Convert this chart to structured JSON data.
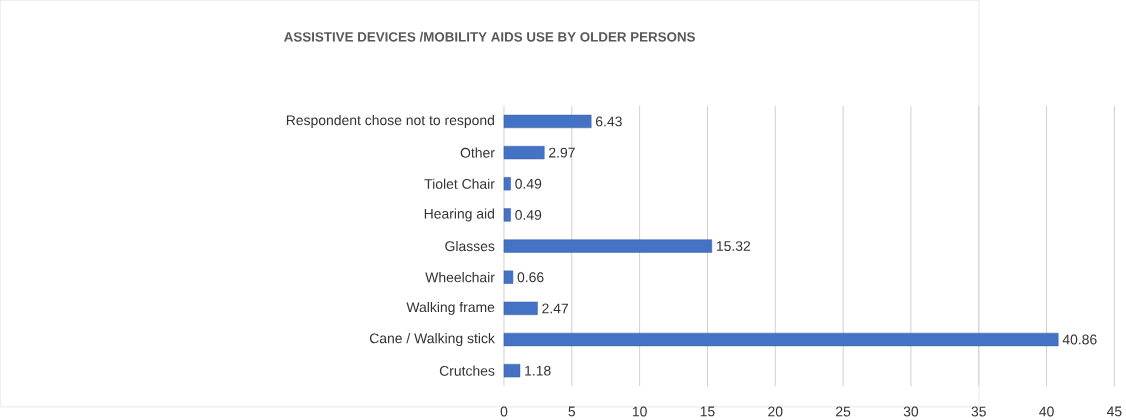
{
  "chart_data": {
    "type": "bar",
    "orientation": "horizontal",
    "title": "ASSISTIVE DEVICES /MOBILITY AIDS USE BY OLDER PERSONS",
    "categories": [
      "Respondent chose not to respond",
      "Other",
      "Tiolet Chair",
      "Hearing aid",
      "Glasses",
      "Wheelchair",
      "Walking frame",
      "Cane / Walking stick",
      "Crutches"
    ],
    "values": [
      6.43,
      2.97,
      0.49,
      0.49,
      15.32,
      0.66,
      2.47,
      40.86,
      1.18
    ],
    "color": "#4472c4",
    "xlim": [
      0,
      45
    ],
    "xticks": [
      0,
      5,
      10,
      15,
      20,
      25,
      30,
      35,
      40,
      45
    ],
    "grid": "x",
    "data_labels": true
  }
}
